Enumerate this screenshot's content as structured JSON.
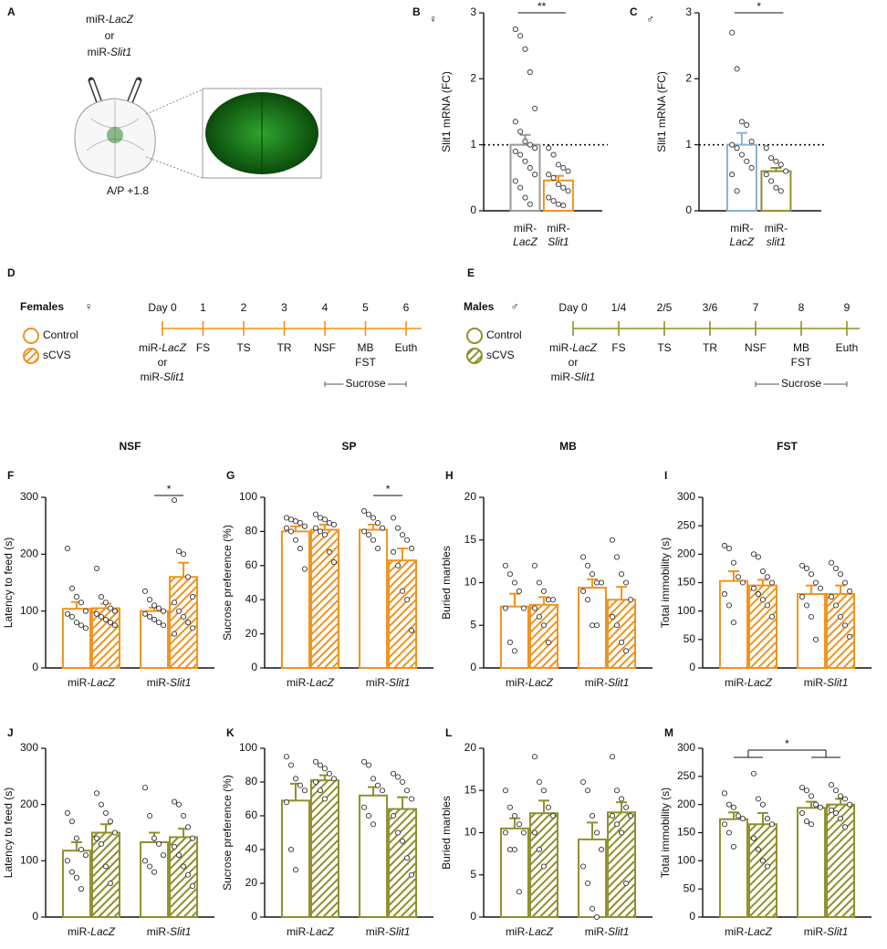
{
  "chart_data": [
    {
      "panel": "A",
      "type": "diagram",
      "labels": [
        "miR-LacZ",
        "or",
        "miR-Slit1"
      ],
      "coordinate": "A/P +1.8",
      "color": "#1f7a1f"
    },
    {
      "panel": "B",
      "type": "bar",
      "symbol": "♀",
      "ylabel": "Slit1 mRNA (FC)",
      "categories": [
        "miR-LacZ",
        "miR-Slit1"
      ],
      "colors": [
        "#9a9a9a",
        "#f0931f"
      ],
      "values": [
        1.0,
        0.46
      ],
      "errors": [
        0.15,
        0.07
      ],
      "points": [
        [
          2.75,
          2.65,
          2.45,
          2.1,
          1.55,
          1.35,
          1.2,
          1.05,
          1.0,
          0.95,
          0.9,
          0.85,
          0.75,
          0.65,
          0.55,
          0.45,
          0.35,
          0.2,
          0.1
        ],
        [
          0.95,
          0.85,
          0.7,
          0.65,
          0.6,
          0.55,
          0.5,
          0.4,
          0.35,
          0.3,
          0.2,
          0.15,
          0.1,
          0.08
        ]
      ],
      "ylim": [
        0,
        3
      ],
      "yticks": [
        0,
        1,
        2,
        3
      ],
      "reference_line": 1,
      "significance": {
        "label": "**"
      }
    },
    {
      "panel": "C",
      "type": "bar",
      "symbol": "♂",
      "ylabel": "Slit1 mRNA (FC)",
      "categories": [
        "miR-LacZ",
        "miR-slit1"
      ],
      "colors": [
        "#8ab0d0",
        "#8f8f2d"
      ],
      "values": [
        1.0,
        0.6
      ],
      "errors": [
        0.18,
        0.05
      ],
      "points": [
        [
          2.7,
          2.15,
          1.35,
          1.3,
          1.05,
          1.0,
          0.95,
          0.85,
          0.75,
          0.65,
          0.55,
          0.3
        ],
        [
          0.95,
          0.8,
          0.75,
          0.7,
          0.6,
          0.55,
          0.45,
          0.35,
          0.3
        ]
      ],
      "ylim": [
        0,
        3
      ],
      "yticks": [
        0,
        1,
        2,
        3
      ],
      "reference_line": 1,
      "significance": {
        "label": "*"
      }
    },
    {
      "panel": "D",
      "type": "timeline",
      "group": "Females",
      "symbol": "♀",
      "color": "#f0931f",
      "legend": [
        "Control",
        "sCVS"
      ],
      "days": [
        "Day 0",
        "1",
        "2",
        "3",
        "4",
        "5",
        "6"
      ],
      "events": [
        [
          "miR-LacZ",
          "or",
          "miR-Slit1"
        ],
        [
          "FS"
        ],
        [
          "TS"
        ],
        [
          "TR"
        ],
        [
          "NSF"
        ],
        [
          "MB",
          "FST"
        ],
        [
          "Euth"
        ]
      ],
      "range_label": "Sucrose"
    },
    {
      "panel": "E",
      "type": "timeline",
      "group": "Males",
      "symbol": "♂",
      "color": "#8f8f2d",
      "legend": [
        "Control",
        "sCVS"
      ],
      "days": [
        "Day 0",
        "1/4",
        "2/5",
        "3/6",
        "7",
        "8",
        "9"
      ],
      "events": [
        [
          "miR-LacZ",
          "or",
          "miR-Slit1"
        ],
        [
          "FS"
        ],
        [
          "TS"
        ],
        [
          "TR"
        ],
        [
          "NSF"
        ],
        [
          "MB",
          "FST"
        ],
        [
          "Euth"
        ]
      ],
      "range_label": "Sucrose"
    },
    {
      "panel": "F",
      "type": "bar",
      "title": "NSF",
      "ylabel": "Latency to feed (s)",
      "categories": [
        "miR-LacZ",
        "miR-Slit1"
      ],
      "ylim": [
        0,
        300
      ],
      "yticks": [
        0,
        100,
        200,
        300
      ],
      "series": [
        {
          "color": "#f0931f",
          "hatch": false,
          "values": [
            104,
            100
          ],
          "errors": [
            12,
            6
          ],
          "points": [
            [
              210,
              140,
              125,
              115,
              100,
              95,
              90,
              80,
              75,
              70
            ],
            [
              135,
              120,
              110,
              105,
              100,
              95,
              90,
              85,
              80,
              75
            ]
          ]
        },
        {
          "color": "#f0931f",
          "hatch": true,
          "values": [
            105,
            160
          ],
          "errors": [
            8,
            25
          ],
          "points": [
            [
              175,
              125,
              115,
              105,
              100,
              95,
              90,
              85,
              80,
              75
            ],
            [
              295,
              205,
              200,
              160,
              125,
              115,
              100,
              90,
              80,
              70,
              60
            ]
          ]
        }
      ],
      "significance": {
        "label": "*",
        "category": 1
      }
    },
    {
      "panel": "G",
      "type": "bar",
      "title": "SP",
      "ylabel": "Sucrose preference (%)",
      "categories": [
        "miR-LacZ",
        "miR-Slit1"
      ],
      "ylim": [
        0,
        100
      ],
      "yticks": [
        0,
        20,
        40,
        60,
        80,
        100
      ],
      "series": [
        {
          "color": "#f0931f",
          "hatch": false,
          "values": [
            80,
            81
          ],
          "errors": [
            3,
            3
          ],
          "points": [
            [
              88,
              87,
              86,
              85,
              83,
              82,
              80,
              75,
              70,
              58
            ],
            [
              92,
              90,
              88,
              85,
              82,
              80,
              78,
              75,
              70
            ]
          ]
        },
        {
          "color": "#f0931f",
          "hatch": true,
          "values": [
            81,
            63
          ],
          "errors": [
            3,
            7
          ],
          "points": [
            [
              90,
              88,
              87,
              85,
              84,
              82,
              80,
              78,
              68,
              62
            ],
            [
              88,
              82,
              78,
              75,
              70,
              68,
              60,
              45,
              40,
              22
            ]
          ]
        }
      ],
      "significance": {
        "label": "*",
        "category": 1
      }
    },
    {
      "panel": "H",
      "type": "bar",
      "title": "MB",
      "ylabel": "Buried marbles",
      "categories": [
        "miR-LacZ",
        "miR-Slit1"
      ],
      "ylim": [
        0,
        20
      ],
      "yticks": [
        0,
        5,
        10,
        15,
        20
      ],
      "series": [
        {
          "color": "#f0931f",
          "hatch": false,
          "values": [
            7.2,
            9.4
          ],
          "errors": [
            1.5,
            1
          ],
          "points": [
            [
              12,
              11,
              10,
              9,
              7,
              7,
              3,
              2
            ],
            [
              13,
              12,
              11,
              10,
              10,
              9,
              8,
              5,
              5
            ]
          ]
        },
        {
          "color": "#f0931f",
          "hatch": true,
          "values": [
            7.4,
            8
          ],
          "errors": [
            0.9,
            1.5
          ],
          "points": [
            [
              12,
              10,
              9,
              8,
              8,
              7,
              6,
              5,
              3
            ],
            [
              15,
              13,
              11,
              10,
              8,
              6,
              5,
              3,
              2
            ]
          ]
        }
      ]
    },
    {
      "panel": "I",
      "type": "bar",
      "title": "FST",
      "ylabel": "Total immobility (s)",
      "categories": [
        "miR-LacZ",
        "miR-Slit1"
      ],
      "ylim": [
        0,
        300
      ],
      "yticks": [
        0,
        50,
        100,
        150,
        200,
        250,
        300
      ],
      "series": [
        {
          "color": "#f0931f",
          "hatch": false,
          "values": [
            153,
            130
          ],
          "errors": [
            17,
            15
          ],
          "points": [
            [
              215,
              210,
              185,
              160,
              150,
              130,
              110,
              80
            ],
            [
              180,
              175,
              165,
              150,
              140,
              125,
              110,
              90,
              50
            ]
          ]
        },
        {
          "color": "#f0931f",
          "hatch": true,
          "values": [
            145,
            130
          ],
          "errors": [
            10,
            15
          ],
          "points": [
            [
              200,
              195,
              170,
              160,
              150,
              140,
              130,
              120,
              110,
              90
            ],
            [
              185,
              175,
              165,
              150,
              135,
              125,
              110,
              90,
              75,
              55
            ]
          ]
        }
      ]
    },
    {
      "panel": "J",
      "type": "bar",
      "ylabel": "Latency to feed (s)",
      "categories": [
        "miR-LacZ",
        "miR-Slit1"
      ],
      "ylim": [
        0,
        300
      ],
      "yticks": [
        0,
        100,
        200,
        300
      ],
      "series": [
        {
          "color": "#8f8f2d",
          "hatch": false,
          "values": [
            118,
            133
          ],
          "errors": [
            15,
            17
          ],
          "points": [
            [
              185,
              170,
              140,
              120,
              110,
              100,
              80,
              70,
              50
            ],
            [
              230,
              180,
              140,
              130,
              110,
              100,
              90,
              80
            ]
          ]
        },
        {
          "color": "#8f8f2d",
          "hatch": true,
          "values": [
            150,
            142
          ],
          "errors": [
            15,
            15
          ],
          "points": [
            [
              220,
              200,
              185,
              170,
              150,
              140,
              130,
              90,
              60
            ],
            [
              205,
              200,
              180,
              160,
              140,
              125,
              110,
              90,
              75,
              55
            ]
          ]
        }
      ]
    },
    {
      "panel": "K",
      "type": "bar",
      "ylabel": "Sucrose preference (%)",
      "categories": [
        "miR-LacZ",
        "miR-Slit1"
      ],
      "ylim": [
        0,
        100
      ],
      "yticks": [
        0,
        20,
        40,
        60,
        80,
        100
      ],
      "series": [
        {
          "color": "#8f8f2d",
          "hatch": false,
          "values": [
            69,
            72
          ],
          "errors": [
            10,
            5
          ],
          "points": [
            [
              95,
              90,
              82,
              78,
              75,
              68,
              40,
              28
            ],
            [
              92,
              90,
              82,
              78,
              75,
              65,
              60,
              55
            ]
          ]
        },
        {
          "color": "#8f8f2d",
          "hatch": true,
          "values": [
            81,
            64
          ],
          "errors": [
            3,
            7
          ],
          "points": [
            [
              92,
              90,
              88,
              85,
              82,
              80,
              75,
              70
            ],
            [
              85,
              83,
              80,
              75,
              70,
              60,
              50,
              45,
              35,
              25
            ]
          ]
        }
      ]
    },
    {
      "panel": "L",
      "type": "bar",
      "ylabel": "Buried marbles",
      "categories": [
        "miR-LacZ",
        "miR-Slit1"
      ],
      "ylim": [
        0,
        20
      ],
      "yticks": [
        0,
        5,
        10,
        15,
        20
      ],
      "series": [
        {
          "color": "#8f8f2d",
          "hatch": false,
          "values": [
            10.5,
            9.2
          ],
          "errors": [
            1.2,
            2
          ],
          "points": [
            [
              15,
              13,
              12,
              11,
              10,
              10,
              8,
              8,
              3
            ],
            [
              16,
              15,
              12,
              10,
              8,
              6,
              4,
              1,
              0
            ]
          ]
        },
        {
          "color": "#8f8f2d",
          "hatch": true,
          "values": [
            12.3,
            12.4
          ],
          "errors": [
            1.5,
            1.2
          ],
          "points": [
            [
              19,
              16,
              15,
              13,
              12,
              10,
              8,
              6
            ],
            [
              19,
              15,
              14,
              13,
              12,
              12,
              11,
              10,
              4
            ]
          ]
        }
      ]
    },
    {
      "panel": "M",
      "type": "bar",
      "ylabel": "Total immobility (s)",
      "categories": [
        "miR-LacZ",
        "miR-Slit1"
      ],
      "ylim": [
        0,
        300
      ],
      "yticks": [
        0,
        50,
        100,
        150,
        200,
        250,
        300
      ],
      "series": [
        {
          "color": "#8f8f2d",
          "hatch": false,
          "values": [
            174,
            194
          ],
          "errors": [
            12,
            11
          ],
          "points": [
            [
              220,
              200,
              195,
              180,
              175,
              165,
              150,
              125
            ],
            [
              230,
              225,
              215,
              200,
              195,
              185,
              170,
              165
            ]
          ]
        },
        {
          "color": "#8f8f2d",
          "hatch": true,
          "values": [
            165,
            200
          ],
          "errors": [
            20,
            10
          ],
          "points": [
            [
              255,
              210,
              200,
              175,
              165,
              140,
              120,
              100,
              90
            ],
            [
              235,
              225,
              215,
              210,
              200,
              190,
              185,
              175,
              160
            ]
          ]
        }
      ],
      "significance": {
        "label": "*",
        "between_categories": true
      }
    }
  ]
}
